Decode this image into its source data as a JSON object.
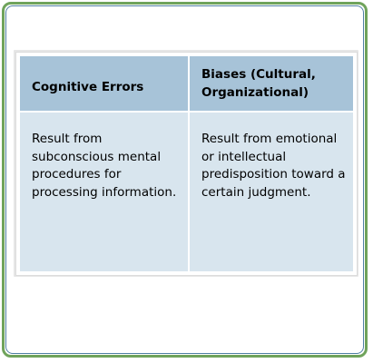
{
  "table": {
    "headers": [
      "Cognitive Errors",
      "Biases (Cultural, Organizational)"
    ],
    "rows": [
      [
        "Result from subconscious mental procedures for processing information.",
        "Result from emotional or intellectual predisposition toward a certain judgment."
      ]
    ]
  },
  "colors": {
    "outer_border": "#6fa35b",
    "inner_border": "#4f7fa3",
    "header_bg": "#a7c3d8",
    "body_bg": "#d8e5ee"
  }
}
